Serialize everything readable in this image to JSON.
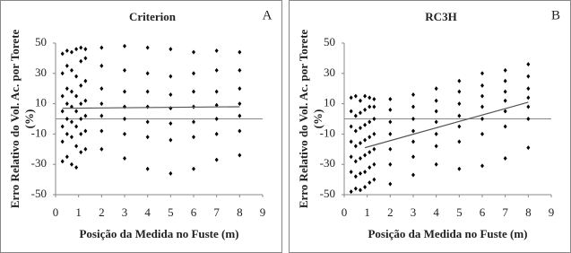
{
  "chart_data": [
    {
      "type": "scatter",
      "title": "Criterion",
      "panel_label": "A",
      "xlabel": "Posição da Medida no Fuste (m)",
      "ylabel": [
        "Erro Relativo do Vol. Ac. por Torete",
        "(%)"
      ],
      "xlim": [
        0,
        9
      ],
      "ylim": [
        -50,
        50
      ],
      "xticks": [
        0,
        1,
        2,
        3,
        4,
        5,
        6,
        7,
        8,
        9
      ],
      "yticks": [
        -50,
        -30,
        -10,
        10,
        30,
        50
      ],
      "color": "#000000",
      "x": [
        0.3,
        0.3,
        0.3,
        0.3,
        0.3,
        0.3,
        0.3,
        0.5,
        0.5,
        0.5,
        0.5,
        0.5,
        0.5,
        0.5,
        0.7,
        0.7,
        0.7,
        0.7,
        0.7,
        0.7,
        0.7,
        0.9,
        0.9,
        0.9,
        0.9,
        0.9,
        0.9,
        0.9,
        1.1,
        1.1,
        1.1,
        1.1,
        1.1,
        1.1,
        1.1,
        1.3,
        1.3,
        1.3,
        1.3,
        1.3,
        1.3,
        1.3,
        2,
        2,
        2,
        2,
        2,
        2,
        2,
        3,
        3,
        3,
        3,
        3,
        3,
        3,
        4,
        4,
        4,
        4,
        4,
        4,
        4,
        5,
        5,
        5,
        5,
        5,
        5,
        5,
        6,
        6,
        6,
        6,
        6,
        6,
        6,
        7,
        7,
        7,
        7,
        7,
        7,
        7,
        8,
        8,
        8,
        8,
        8,
        8,
        8
      ],
      "values": [
        -28,
        -15,
        -5,
        5,
        15,
        30,
        43,
        -25,
        -10,
        0,
        10,
        20,
        35,
        45,
        -30,
        -12,
        -2,
        8,
        18,
        32,
        44,
        -32,
        -18,
        -5,
        5,
        15,
        28,
        46,
        -22,
        -10,
        0,
        10,
        22,
        38,
        47,
        -20,
        -8,
        2,
        12,
        25,
        40,
        46,
        -20,
        -8,
        2,
        10,
        20,
        35,
        47,
        -26,
        -10,
        0,
        8,
        18,
        32,
        48,
        -33,
        -12,
        -2,
        8,
        18,
        30,
        47,
        -36,
        -14,
        -3,
        7,
        16,
        28,
        46,
        -33,
        -12,
        -2,
        8,
        18,
        30,
        44,
        -27,
        -10,
        0,
        9,
        18,
        32,
        45,
        -24,
        -8,
        2,
        10,
        20,
        32,
        44
      ],
      "trendline": {
        "x": [
          0.3,
          8
        ],
        "values": [
          7,
          8
        ],
        "color": "#555555"
      }
    },
    {
      "type": "scatter",
      "title": "RC3H",
      "panel_label": "B",
      "xlabel": "Posição da Medida no Fuste (m)",
      "ylabel": [
        "Erro Relativo do Vol. Ac. por Torete",
        "(%)"
      ],
      "xlim": [
        0,
        9
      ],
      "ylim": [
        -50,
        50
      ],
      "xticks": [
        0,
        1,
        2,
        3,
        4,
        5,
        6,
        7,
        8,
        9
      ],
      "yticks": [
        -50,
        -30,
        -10,
        10,
        30,
        50
      ],
      "color": "#000000",
      "x": [
        0.3,
        0.3,
        0.3,
        0.3,
        0.3,
        0.3,
        0.3,
        0.5,
        0.5,
        0.5,
        0.5,
        0.5,
        0.5,
        0.5,
        0.7,
        0.7,
        0.7,
        0.7,
        0.7,
        0.7,
        0.7,
        0.9,
        0.9,
        0.9,
        0.9,
        0.9,
        0.9,
        0.9,
        1.1,
        1.1,
        1.1,
        1.1,
        1.1,
        1.1,
        1.1,
        1.3,
        1.3,
        1.3,
        1.3,
        1.3,
        1.3,
        1.3,
        2,
        2,
        2,
        2,
        2,
        2,
        2,
        3,
        3,
        3,
        3,
        3,
        3,
        3,
        4,
        4,
        4,
        4,
        4,
        4,
        4,
        5,
        5,
        5,
        5,
        5,
        5,
        5,
        6,
        6,
        6,
        6,
        6,
        6,
        6,
        7,
        7,
        7,
        7,
        7,
        7,
        7,
        8,
        8,
        8,
        8,
        8,
        8,
        8
      ],
      "values": [
        -48,
        -35,
        -25,
        -15,
        -5,
        5,
        14,
        -46,
        -38,
        -28,
        -18,
        -8,
        2,
        15,
        -47,
        -36,
        -26,
        -16,
        -6,
        4,
        12,
        -45,
        -35,
        -24,
        -14,
        -4,
        6,
        15,
        -42,
        -32,
        -22,
        -12,
        -2,
        8,
        14,
        -40,
        -30,
        -20,
        -10,
        0,
        8,
        13,
        -43,
        -30,
        -20,
        -10,
        -2,
        6,
        13,
        -37,
        -25,
        -15,
        -8,
        0,
        8,
        16,
        -30,
        -18,
        -10,
        -2,
        5,
        12,
        20,
        -33,
        -15,
        -5,
        2,
        10,
        18,
        25,
        -31,
        -10,
        0,
        8,
        15,
        22,
        30,
        -26,
        -5,
        5,
        12,
        18,
        25,
        32,
        -19,
        0,
        8,
        14,
        20,
        28,
        36
      ],
      "trendline": {
        "x": [
          0.9,
          8
        ],
        "values": [
          -19,
          11
        ],
        "color": "#555555"
      }
    }
  ]
}
